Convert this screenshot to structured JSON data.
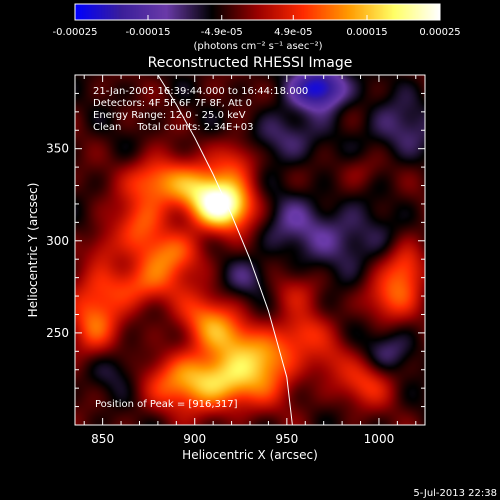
{
  "chart_data": {
    "type": "heatmap",
    "title": "Reconstructed RHESSI Image",
    "xlabel": "Heliocentric X (arcsec)",
    "ylabel": "Heliocentric Y (arcsec)",
    "xlim": [
      835,
      1025
    ],
    "ylim": [
      200,
      390
    ],
    "x_ticks": [
      850,
      900,
      950,
      1000
    ],
    "y_ticks": [
      250,
      300,
      350
    ],
    "colorbar": {
      "range": [
        -0.00025,
        0.00025
      ],
      "tick_values": [
        -0.00025,
        -0.00015,
        -4.9e-05,
        4.9e-05,
        0.00015,
        0.00025
      ],
      "tick_labels": [
        "-0.00025",
        "-0.00015",
        "-4.9e-05",
        "4.9e-05",
        "0.00015",
        "0.00025"
      ],
      "unit_text": "(photons cm⁻² s⁻¹ asec⁻²)",
      "colors": [
        "#0000ff",
        "#3a1e9a",
        "#6a3aa8",
        "#000000",
        "#9a0000",
        "#ff2a00",
        "#ff9a00",
        "#ffff66",
        "#ffffff"
      ]
    },
    "annotations": [
      "21-Jan-2005 16:39:44.000 to 16:44:18.000",
      "Detectors: 4F 5F 6F 7F 8F, Att 0",
      "Energy Range: 12.0 - 25.0 keV",
      "Clean     Total counts: 2.34E+03"
    ],
    "peak_label": "Position of Peak = [916,317]",
    "peak_position": [
      916,
      317
    ],
    "limb_curve": {
      "x": [
        880,
        890,
        900,
        910,
        920,
        930,
        940,
        950,
        953
      ],
      "y": [
        390,
        374,
        356,
        336,
        314,
        290,
        262,
        226,
        200
      ]
    },
    "sources": [
      {
        "x": 915,
        "y": 318,
        "sx": 12,
        "sy": 9,
        "amp": 0.00026
      },
      {
        "x": 902,
        "y": 329,
        "sx": 15,
        "sy": 9,
        "amp": 0.00014
      },
      {
        "x": 878,
        "y": 333,
        "sx": 11,
        "sy": 9,
        "amp": 0.00012
      },
      {
        "x": 923,
        "y": 345,
        "sx": 9,
        "sy": 9,
        "amp": 0.0001
      },
      {
        "x": 870,
        "y": 310,
        "sx": 10,
        "sy": 10,
        "amp": 0.0001
      },
      {
        "x": 887,
        "y": 293,
        "sx": 13,
        "sy": 9,
        "amp": 0.00012
      },
      {
        "x": 870,
        "y": 276,
        "sx": 16,
        "sy": 9,
        "amp": 0.00012
      },
      {
        "x": 845,
        "y": 255,
        "sx": 10,
        "sy": 14,
        "amp": 0.00013
      },
      {
        "x": 850,
        "y": 296,
        "sx": 7,
        "sy": 8,
        "amp": 7e-05
      },
      {
        "x": 905,
        "y": 259,
        "sx": 11,
        "sy": 9,
        "amp": 0.0001
      },
      {
        "x": 918,
        "y": 248,
        "sx": 12,
        "sy": 9,
        "amp": 0.00012
      },
      {
        "x": 940,
        "y": 238,
        "sx": 11,
        "sy": 9,
        "amp": 0.00012
      },
      {
        "x": 910,
        "y": 224,
        "sx": 24,
        "sy": 11,
        "amp": 0.00022
      },
      {
        "x": 958,
        "y": 250,
        "sx": 9,
        "sy": 8,
        "amp": 9e-05
      },
      {
        "x": 1005,
        "y": 268,
        "sx": 10,
        "sy": 9,
        "amp": 0.0001
      },
      {
        "x": 1015,
        "y": 285,
        "sx": 8,
        "sy": 10,
        "amp": 0.00012
      },
      {
        "x": 992,
        "y": 222,
        "sx": 11,
        "sy": 9,
        "amp": 9e-05
      },
      {
        "x": 972,
        "y": 236,
        "sx": 8,
        "sy": 8,
        "amp": 6e-05
      },
      {
        "x": 955,
        "y": 272,
        "sx": 10,
        "sy": 8,
        "amp": 5e-05
      },
      {
        "x": 990,
        "y": 338,
        "sx": 9,
        "sy": 7,
        "amp": 4e-05
      },
      {
        "x": 945,
        "y": 355,
        "sx": 14,
        "sy": 10,
        "amp": -7e-05
      },
      {
        "x": 968,
        "y": 383,
        "sx": 10,
        "sy": 8,
        "amp": -0.0002
      },
      {
        "x": 955,
        "y": 310,
        "sx": 16,
        "sy": 12,
        "amp": -6e-05
      },
      {
        "x": 985,
        "y": 300,
        "sx": 14,
        "sy": 12,
        "amp": -6e-05
      },
      {
        "x": 860,
        "y": 230,
        "sx": 12,
        "sy": 10,
        "amp": -6e-05
      },
      {
        "x": 930,
        "y": 280,
        "sx": 10,
        "sy": 8,
        "amp": -5e-05
      },
      {
        "x": 1010,
        "y": 360,
        "sx": 14,
        "sy": 12,
        "amp": -6e-05
      },
      {
        "x": 1005,
        "y": 240,
        "sx": 10,
        "sy": 8,
        "amp": -5e-05
      }
    ]
  },
  "footer": {
    "timestamp": "5-Jul-2013 22:38"
  }
}
